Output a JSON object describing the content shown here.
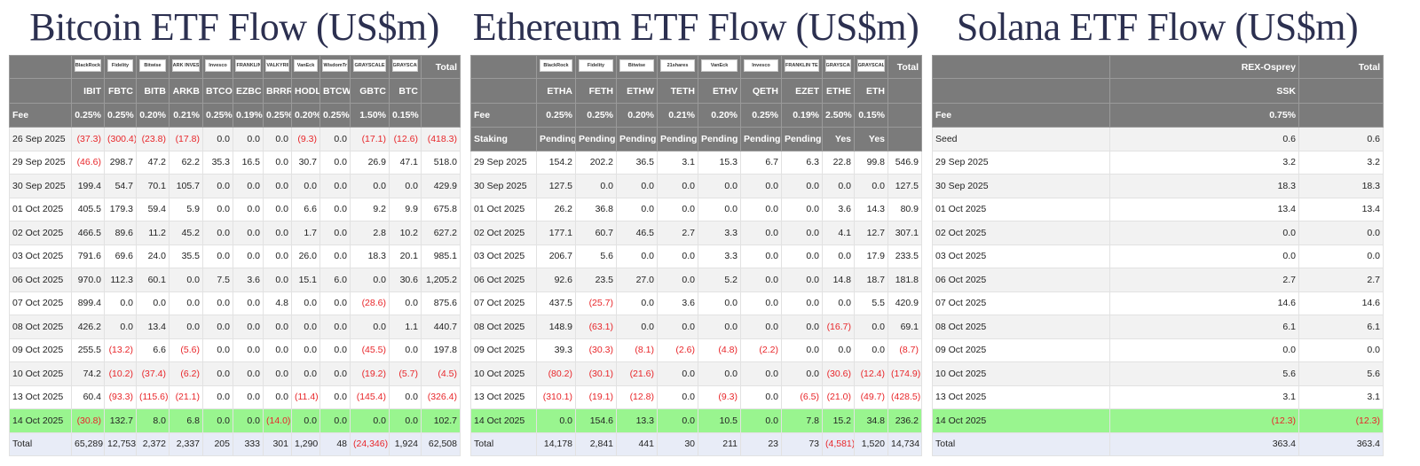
{
  "tables": [
    {
      "title": "Bitcoin ETF Flow (US$m)",
      "logo_row": true,
      "header_rows": [
        [
          null,
          "BlackRock",
          "Fidelity",
          "Bitwise",
          "ARK INVEST",
          "Invesco",
          "FRANKLIN TEMPLETON",
          "VALKYRIE",
          "VanEck",
          "WisdomTree",
          "GRAYSCALE",
          "GRAYSCALE",
          "Total"
        ],
        [
          null,
          "IBIT",
          "FBTC",
          "BITB",
          "ARKB",
          "BTCO",
          "EZBC",
          "BRRR",
          "HODL",
          "BTCW",
          "GBTC",
          "BTC",
          null
        ],
        [
          "Fee",
          "0.25%",
          "0.25%",
          "0.20%",
          "0.21%",
          "0.25%",
          "0.19%",
          "0.25%",
          "0.20%",
          "0.25%",
          "1.50%",
          "0.15%",
          null
        ]
      ],
      "rows": [
        [
          "26 Sep 2025",
          "(37.3)",
          "(300.4)",
          "(23.8)",
          "(17.8)",
          "0.0",
          "0.0",
          "0.0",
          "(9.3)",
          "0.0",
          "(17.1)",
          "(12.6)",
          "(418.3)"
        ],
        [
          "29 Sep 2025",
          "(46.6)",
          "298.7",
          "47.2",
          "62.2",
          "35.3",
          "16.5",
          "0.0",
          "30.7",
          "0.0",
          "26.9",
          "47.1",
          "518.0"
        ],
        [
          "30 Sep 2025",
          "199.4",
          "54.7",
          "70.1",
          "105.7",
          "0.0",
          "0.0",
          "0.0",
          "0.0",
          "0.0",
          "0.0",
          "0.0",
          "429.9"
        ],
        [
          "01 Oct 2025",
          "405.5",
          "179.3",
          "59.4",
          "5.9",
          "0.0",
          "0.0",
          "0.0",
          "6.6",
          "0.0",
          "9.2",
          "9.9",
          "675.8"
        ],
        [
          "02 Oct 2025",
          "466.5",
          "89.6",
          "11.2",
          "45.2",
          "0.0",
          "0.0",
          "0.0",
          "1.7",
          "0.0",
          "2.8",
          "10.2",
          "627.2"
        ],
        [
          "03 Oct 2025",
          "791.6",
          "69.6",
          "24.0",
          "35.5",
          "0.0",
          "0.0",
          "0.0",
          "26.0",
          "0.0",
          "18.3",
          "20.1",
          "985.1"
        ],
        [
          "06 Oct 2025",
          "970.0",
          "112.3",
          "60.1",
          "0.0",
          "7.5",
          "3.6",
          "0.0",
          "15.1",
          "6.0",
          "0.0",
          "30.6",
          "1,205.2"
        ],
        [
          "07 Oct 2025",
          "899.4",
          "0.0",
          "0.0",
          "0.0",
          "0.0",
          "0.0",
          "4.8",
          "0.0",
          "0.0",
          "(28.6)",
          "0.0",
          "875.6"
        ],
        [
          "08 Oct 2025",
          "426.2",
          "0.0",
          "13.4",
          "0.0",
          "0.0",
          "0.0",
          "0.0",
          "0.0",
          "0.0",
          "0.0",
          "1.1",
          "440.7"
        ],
        [
          "09 Oct 2025",
          "255.5",
          "(13.2)",
          "6.6",
          "(5.6)",
          "0.0",
          "0.0",
          "0.0",
          "0.0",
          "0.0",
          "(45.5)",
          "0.0",
          "197.8"
        ],
        [
          "10 Oct 2025",
          "74.2",
          "(10.2)",
          "(37.4)",
          "(6.2)",
          "0.0",
          "0.0",
          "0.0",
          "0.0",
          "0.0",
          "(19.2)",
          "(5.7)",
          "(4.5)"
        ],
        [
          "13 Oct 2025",
          "60.4",
          "(93.3)",
          "(115.6)",
          "(21.1)",
          "0.0",
          "0.0",
          "0.0",
          "(11.4)",
          "0.0",
          "(145.4)",
          "0.0",
          "(326.4)"
        ],
        [
          "14 Oct 2025",
          "(30.8)",
          "132.7",
          "8.0",
          "6.8",
          "0.0",
          "0.0",
          "(14.0)",
          "0.0",
          "0.0",
          "0.0",
          "0.0",
          "102.7"
        ],
        [
          "Total",
          "65,289",
          "12,753",
          "2,372",
          "2,337",
          "205",
          "333",
          "301",
          "1,290",
          "48",
          "(24,346)",
          "1,924",
          "62,508"
        ]
      ]
    },
    {
      "title": "Ethereum ETF Flow (US$m)",
      "logo_row": true,
      "header_rows": [
        [
          null,
          "BlackRock",
          "Fidelity",
          "Bitwise",
          "21shares",
          "VanEck",
          "Invesco",
          "FRANKLIN TEMPLETON",
          "GRAYSCALE",
          "GRAYSCALE",
          "Total"
        ],
        [
          null,
          "ETHA",
          "FETH",
          "ETHW",
          "TETH",
          "ETHV",
          "QETH",
          "EZET",
          "ETHE",
          "ETH",
          null
        ],
        [
          "Fee",
          "0.25%",
          "0.25%",
          "0.20%",
          "0.21%",
          "0.20%",
          "0.25%",
          "0.19%",
          "2.50%",
          "0.15%",
          null
        ],
        [
          "Staking",
          "Pending",
          "Pending",
          "Pending",
          "Pending",
          "Pending",
          "Pending",
          "Pending",
          "Yes",
          "Yes",
          null
        ]
      ],
      "rows": [
        [
          "29 Sep 2025",
          "154.2",
          "202.2",
          "36.5",
          "3.1",
          "15.3",
          "6.7",
          "6.3",
          "22.8",
          "99.8",
          "546.9"
        ],
        [
          "30 Sep 2025",
          "127.5",
          "0.0",
          "0.0",
          "0.0",
          "0.0",
          "0.0",
          "0.0",
          "0.0",
          "0.0",
          "127.5"
        ],
        [
          "01 Oct 2025",
          "26.2",
          "36.8",
          "0.0",
          "0.0",
          "0.0",
          "0.0",
          "0.0",
          "3.6",
          "14.3",
          "80.9"
        ],
        [
          "02 Oct 2025",
          "177.1",
          "60.7",
          "46.5",
          "2.7",
          "3.3",
          "0.0",
          "0.0",
          "4.1",
          "12.7",
          "307.1"
        ],
        [
          "03 Oct 2025",
          "206.7",
          "5.6",
          "0.0",
          "0.0",
          "3.3",
          "0.0",
          "0.0",
          "0.0",
          "17.9",
          "233.5"
        ],
        [
          "06 Oct 2025",
          "92.6",
          "23.5",
          "27.0",
          "0.0",
          "5.2",
          "0.0",
          "0.0",
          "14.8",
          "18.7",
          "181.8"
        ],
        [
          "07 Oct 2025",
          "437.5",
          "(25.7)",
          "0.0",
          "3.6",
          "0.0",
          "0.0",
          "0.0",
          "0.0",
          "5.5",
          "420.9"
        ],
        [
          "08 Oct 2025",
          "148.9",
          "(63.1)",
          "0.0",
          "0.0",
          "0.0",
          "0.0",
          "0.0",
          "(16.7)",
          "0.0",
          "69.1"
        ],
        [
          "09 Oct 2025",
          "39.3",
          "(30.3)",
          "(8.1)",
          "(2.6)",
          "(4.8)",
          "(2.2)",
          "0.0",
          "0.0",
          "0.0",
          "(8.7)"
        ],
        [
          "10 Oct 2025",
          "(80.2)",
          "(30.1)",
          "(21.6)",
          "0.0",
          "0.0",
          "0.0",
          "0.0",
          "(30.6)",
          "(12.4)",
          "(174.9)"
        ],
        [
          "13 Oct 2025",
          "(310.1)",
          "(19.1)",
          "(12.8)",
          "0.0",
          "(9.3)",
          "0.0",
          "(6.5)",
          "(21.0)",
          "(49.7)",
          "(428.5)"
        ],
        [
          "14 Oct 2025",
          "0.0",
          "154.6",
          "13.3",
          "0.0",
          "10.5",
          "0.0",
          "7.8",
          "15.2",
          "34.8",
          "236.2"
        ],
        [
          "Total",
          "14,178",
          "2,841",
          "441",
          "30",
          "211",
          "23",
          "73",
          "(4,581)",
          "1,520",
          "14,734"
        ]
      ]
    },
    {
      "title": "Solana ETF Flow (US$m)",
      "logo_row": false,
      "header_rows": [
        [
          null,
          "REX-Osprey",
          "Total"
        ],
        [
          null,
          "SSK",
          null
        ],
        [
          "Fee",
          "0.75%",
          null
        ]
      ],
      "rows": [
        [
          "Seed",
          "0.6",
          "0.6"
        ],
        [
          "29 Sep 2025",
          "3.2",
          "3.2"
        ],
        [
          "30 Sep 2025",
          "18.3",
          "18.3"
        ],
        [
          "01 Oct 2025",
          "13.4",
          "13.4"
        ],
        [
          "02 Oct 2025",
          "0.0",
          "0.0"
        ],
        [
          "03 Oct 2025",
          "0.0",
          "0.0"
        ],
        [
          "06 Oct 2025",
          "2.7",
          "2.7"
        ],
        [
          "07 Oct 2025",
          "14.6",
          "14.6"
        ],
        [
          "08 Oct 2025",
          "6.1",
          "6.1"
        ],
        [
          "09 Oct 2025",
          "0.0",
          "0.0"
        ],
        [
          "10 Oct 2025",
          "5.6",
          "5.6"
        ],
        [
          "13 Oct 2025",
          "3.1",
          "3.1"
        ],
        [
          "14 Oct 2025",
          "(12.3)",
          "(12.3)"
        ],
        [
          "Total",
          "363.4",
          "363.4"
        ]
      ]
    }
  ]
}
